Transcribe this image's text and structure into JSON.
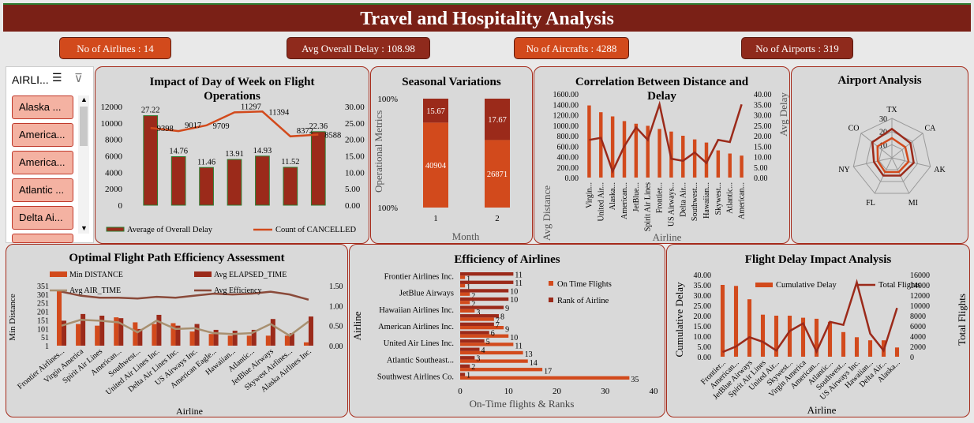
{
  "title": "Travel and Hospitality Analysis",
  "kpis": [
    {
      "label": "No of Airlines : 14",
      "color": "#d24a1c"
    },
    {
      "label": "Avg Overall Delay : 108.98",
      "color": "#8f2a1c"
    },
    {
      "label": "No of Aircrafts : 4288",
      "color": "#d24a1c"
    },
    {
      "label": "No of Airports : 319",
      "color": "#8f2a1c"
    }
  ],
  "slicer": {
    "header": "AIRLI...",
    "items": [
      "Alaska ...",
      "America...",
      "America...",
      "Atlantic ...",
      "Delta Ai..."
    ]
  },
  "colors": {
    "dark": "#9b2a1a",
    "orange": "#d24a1c",
    "tan": "#a89070",
    "brown": "#8a4a3a"
  },
  "chart_data": [
    {
      "id": "dow",
      "type": "bar",
      "title": "Impact of Day of Week on Flight Operations",
      "categories": [
        "1",
        "2",
        "3",
        "4",
        "5",
        "6",
        "7"
      ],
      "series": [
        {
          "name": "Average of Overall Delay",
          "values": [
            27.22,
            14.76,
            11.46,
            13.91,
            14.93,
            11.52,
            22.36
          ],
          "axis": "right"
        },
        {
          "name": "Count of CANCELLED",
          "values": [
            9398,
            9017,
            9709,
            11297,
            11394,
            8372,
            8588
          ],
          "axis": "left",
          "type": "line"
        }
      ],
      "ylim_left": [
        0,
        12000
      ],
      "yticks_left": [
        "0",
        "2000",
        "4000",
        "6000",
        "8000",
        "10000",
        "12000"
      ],
      "ylim_right": [
        0,
        30
      ],
      "yticks_right": [
        "0.00",
        "5.00",
        "10.00",
        "15.00",
        "20.00",
        "25.00",
        "30.00"
      ]
    },
    {
      "id": "seasonal",
      "type": "bar",
      "title": "Seasonal Variations",
      "categories": [
        "1",
        "2"
      ],
      "series": [
        {
          "name": "Lower",
          "values": [
            40904,
            26871
          ]
        },
        {
          "name": "Upper",
          "values": [
            15.67,
            17.67
          ]
        }
      ],
      "xlabel": "Month",
      "ylabel": "Operational Metrics",
      "yticks": [
        "100%",
        "100%"
      ]
    },
    {
      "id": "distdelay",
      "type": "bar",
      "title": "Correlation Between Distance and Delay",
      "categories": [
        "Virgin...",
        "United Air...",
        "Alaska...",
        "American...",
        "JetBlue...",
        "Spirit Air Lines",
        "Frontier...",
        "US Airways...",
        "Delta Air...",
        "Southwest...",
        "Hawaiian...",
        "Skywest...",
        "Atlantic...",
        "American..."
      ],
      "series": [
        {
          "name": "Avg Distance",
          "values": [
            1380,
            1250,
            1170,
            1080,
            1030,
            990,
            930,
            880,
            800,
            730,
            670,
            520,
            460,
            420
          ],
          "axis": "left"
        },
        {
          "name": "Avg Delay",
          "values": [
            18,
            19,
            3,
            15,
            24,
            18,
            35,
            9,
            8,
            12,
            7,
            18,
            17,
            35
          ],
          "axis": "right",
          "type": "line"
        }
      ],
      "xlabel": "Airline",
      "ylabel": "Avg Distance",
      "ylabel_right": "Avg Delay",
      "ylim_left": [
        0,
        1600
      ],
      "yticks_left": [
        "0.00",
        "200.00",
        "400.00",
        "600.00",
        "800.00",
        "1000.00",
        "1200.00",
        "1400.00",
        "1600.00"
      ],
      "ylim_right": [
        0,
        40
      ],
      "yticks_right": [
        "0.00",
        "5.00",
        "10.00",
        "15.00",
        "20.00",
        "25.00",
        "30.00",
        "35.00",
        "40.00"
      ]
    },
    {
      "id": "airport",
      "type": "radar",
      "title": "Airport Analysis",
      "categories": [
        "TX",
        "CA",
        "AK",
        "MI",
        "FL",
        "NY",
        "CO"
      ],
      "series": [
        {
          "values": [
            22,
            18,
            17,
            15,
            15,
            14,
            19
          ]
        },
        {
          "values": [
            15,
            13,
            13,
            12,
            12,
            11,
            14
          ]
        }
      ],
      "rticks": [
        "10",
        "20",
        "30"
      ],
      "rmax": 30
    },
    {
      "id": "flightpath",
      "type": "bar",
      "title": "Optimal Flight Path Efficiency Assessment",
      "categories": [
        "Frontier Airlines...",
        "Virgin America",
        "Spirit Air Lines",
        "American...",
        "Southwest...",
        "United Air Lines Inc.",
        "Delta Air Lines Inc.",
        "US Airways Inc.",
        "American Eagle...",
        "Hawaiian...",
        "Atlantic...",
        "JetBlue Airways",
        "Skywest Airlines...",
        "Alaska Airlines Inc."
      ],
      "series": [
        {
          "name": "Min DISTANCE",
          "values": [
            330,
            130,
            120,
            170,
            140,
            130,
            135,
            85,
            70,
            60,
            60,
            60,
            60,
            20
          ],
          "axis": "left"
        },
        {
          "name": "Avg ELAPSED_TIME",
          "values": [
            150,
            190,
            180,
            165,
            100,
            185,
            120,
            130,
            95,
            90,
            95,
            160,
            75,
            175
          ],
          "axis": "left"
        },
        {
          "name": "Avg AIR_TIME",
          "values": [
            120,
            155,
            150,
            140,
            80,
            150,
            100,
            105,
            75,
            70,
            75,
            130,
            60,
            145
          ],
          "axis": "left",
          "type": "line"
        },
        {
          "name": "Avg Efficiency",
          "values": [
            1.35,
            1.25,
            1.2,
            1.2,
            1.18,
            1.22,
            1.2,
            1.25,
            1.3,
            1.28,
            1.3,
            1.35,
            1.28,
            1.15
          ],
          "axis": "right",
          "type": "line"
        }
      ],
      "xlabel": "Airline",
      "ylabel": "Min Distance",
      "ylim_left": [
        0,
        360
      ],
      "yticks_left": [
        "1",
        "51",
        "101",
        "151",
        "201",
        "251",
        "301",
        "351"
      ],
      "yticks_right": [
        "0.00",
        "0.50",
        "1.00",
        "1.50"
      ]
    },
    {
      "id": "efficiency",
      "type": "bar",
      "title": "Efficiency of Airlines",
      "categories": [
        "Frontier Airlines Inc.",
        "",
        "JetBlue Airways",
        "",
        "Hawaiian Airlines Inc.",
        "",
        "American Airlines Inc.",
        "",
        "United Air Lines Inc.",
        "",
        "Atlantic Southeast...",
        "",
        "Southwest Airlines Co."
      ],
      "series": [
        {
          "name": "On Time Flights",
          "values": [
            1,
            1,
            2,
            2,
            3,
            7,
            9,
            10,
            11,
            13,
            14,
            17,
            35
          ]
        },
        {
          "name": "Rank of Airline",
          "values": [
            11,
            11,
            10,
            10,
            9,
            8,
            7,
            6,
            5,
            4,
            3,
            2,
            1
          ]
        }
      ],
      "xlabel": "On-Time flights & Ranks",
      "ylabel": "Airline",
      "xlim": [
        0,
        40
      ],
      "xticks": [
        "0",
        "10",
        "20",
        "30",
        "40"
      ]
    },
    {
      "id": "delayimpact",
      "type": "bar",
      "title": "Flight Delay Impact Analysis",
      "categories": [
        "Frontier...",
        "American...",
        "JetBlue Airways",
        "Spirit Air Lines",
        "United Air...",
        "Skywest...",
        "Virgin America",
        "American...",
        "Atlantic...",
        "Southwest...",
        "US Airways Inc.",
        "Hawaiian...",
        "Delta Air...",
        "Alaska..."
      ],
      "series": [
        {
          "name": "Cumulative Delay",
          "values": [
            35,
            34.5,
            28,
            20.5,
            20,
            20,
            19,
            18.5,
            17,
            12,
            9.5,
            8,
            8,
            4.5
          ],
          "axis": "left"
        },
        {
          "name": "Total Flights",
          "values": [
            900,
            2000,
            3800,
            2900,
            1200,
            5000,
            6500,
            1000,
            6800,
            6200,
            14500,
            4500,
            1200,
            9500
          ],
          "axis": "right",
          "type": "line"
        }
      ],
      "xlabel": "Airline",
      "ylabel": "Cumulative Delay",
      "ylabel_right": "Total Flights",
      "ylim_left": [
        0,
        40
      ],
      "yticks_left": [
        "0.00",
        "5.00",
        "10.00",
        "15.00",
        "20.00",
        "25.00",
        "30.00",
        "35.00",
        "40.00"
      ],
      "ylim_right": [
        0,
        16000
      ],
      "yticks_right": [
        "0",
        "2000",
        "4000",
        "6000",
        "8000",
        "10000",
        "12000",
        "14000",
        "16000"
      ]
    }
  ]
}
